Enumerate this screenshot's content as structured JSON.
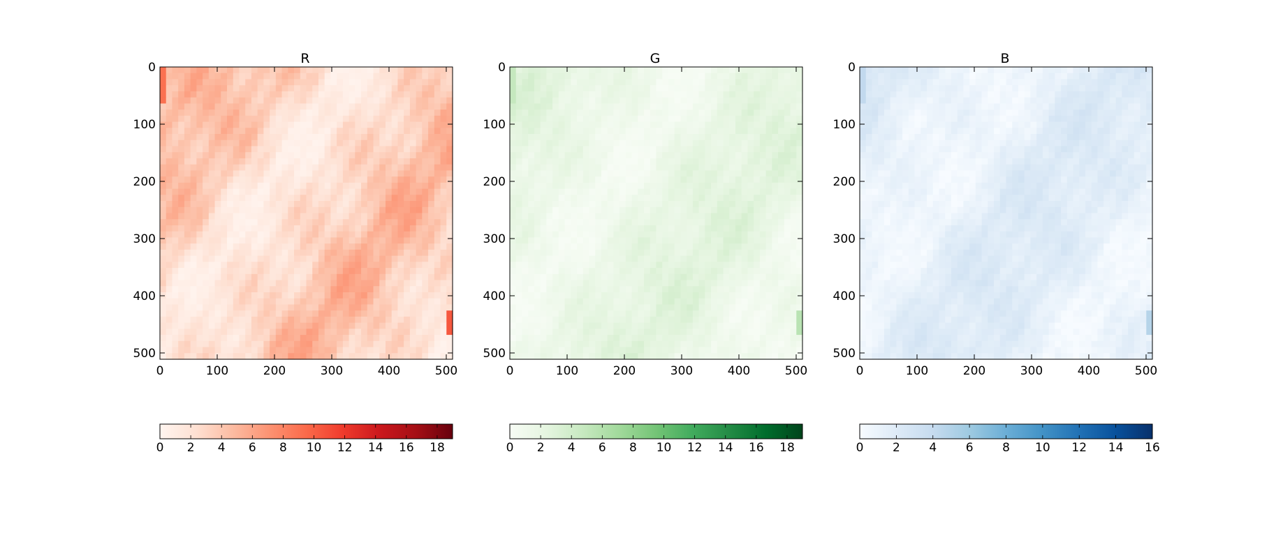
{
  "chart_data": [
    {
      "type": "heatmap",
      "title": "R",
      "colormap": "Reds",
      "colors": [
        "#fff5f0",
        "#fee0d2",
        "#fcbba1",
        "#fc9272",
        "#fb6a4a",
        "#ef3b2c",
        "#cb181d",
        "#a50f15",
        "#67000d"
      ],
      "xlim": [
        0,
        511
      ],
      "ylim": [
        511,
        0
      ],
      "x_ticks": [
        0,
        100,
        200,
        300,
        400,
        500
      ],
      "y_ticks": [
        0,
        100,
        200,
        300,
        400,
        500
      ],
      "colorbar": {
        "vmin": 0,
        "vmax": 19,
        "ticks": [
          0,
          2,
          4,
          6,
          8,
          10,
          12,
          14,
          16,
          18
        ]
      },
      "value_range": [
        0.5,
        6.5
      ]
    },
    {
      "type": "heatmap",
      "title": "G",
      "colormap": "Greens",
      "colors": [
        "#f7fcf5",
        "#e5f5e0",
        "#c7e9c0",
        "#a1d99b",
        "#74c476",
        "#41ab5d",
        "#238b45",
        "#006d2c",
        "#00441b"
      ],
      "xlim": [
        0,
        511
      ],
      "ylim": [
        511,
        0
      ],
      "x_ticks": [
        0,
        100,
        200,
        300,
        400,
        500
      ],
      "y_ticks": [
        0,
        100,
        200,
        300,
        400,
        500
      ],
      "colorbar": {
        "vmin": 0,
        "vmax": 19,
        "ticks": [
          0,
          2,
          4,
          6,
          8,
          10,
          12,
          14,
          16,
          18
        ]
      },
      "value_range": [
        0.2,
        3.5
      ]
    },
    {
      "type": "heatmap",
      "title": "B",
      "colormap": "Blues",
      "colors": [
        "#f7fbff",
        "#deebf7",
        "#c6dbef",
        "#9ecae1",
        "#6baed6",
        "#4292c6",
        "#2171b5",
        "#08519c",
        "#08306b"
      ],
      "xlim": [
        0,
        511
      ],
      "ylim": [
        511,
        0
      ],
      "x_ticks": [
        0,
        100,
        200,
        300,
        400,
        500
      ],
      "y_ticks": [
        0,
        100,
        200,
        300,
        400,
        500
      ],
      "colorbar": {
        "vmin": 0,
        "vmax": 16,
        "ticks": [
          0,
          2,
          4,
          6,
          8,
          10,
          12,
          14,
          16
        ]
      },
      "value_range": [
        0.2,
        3.0
      ]
    }
  ]
}
